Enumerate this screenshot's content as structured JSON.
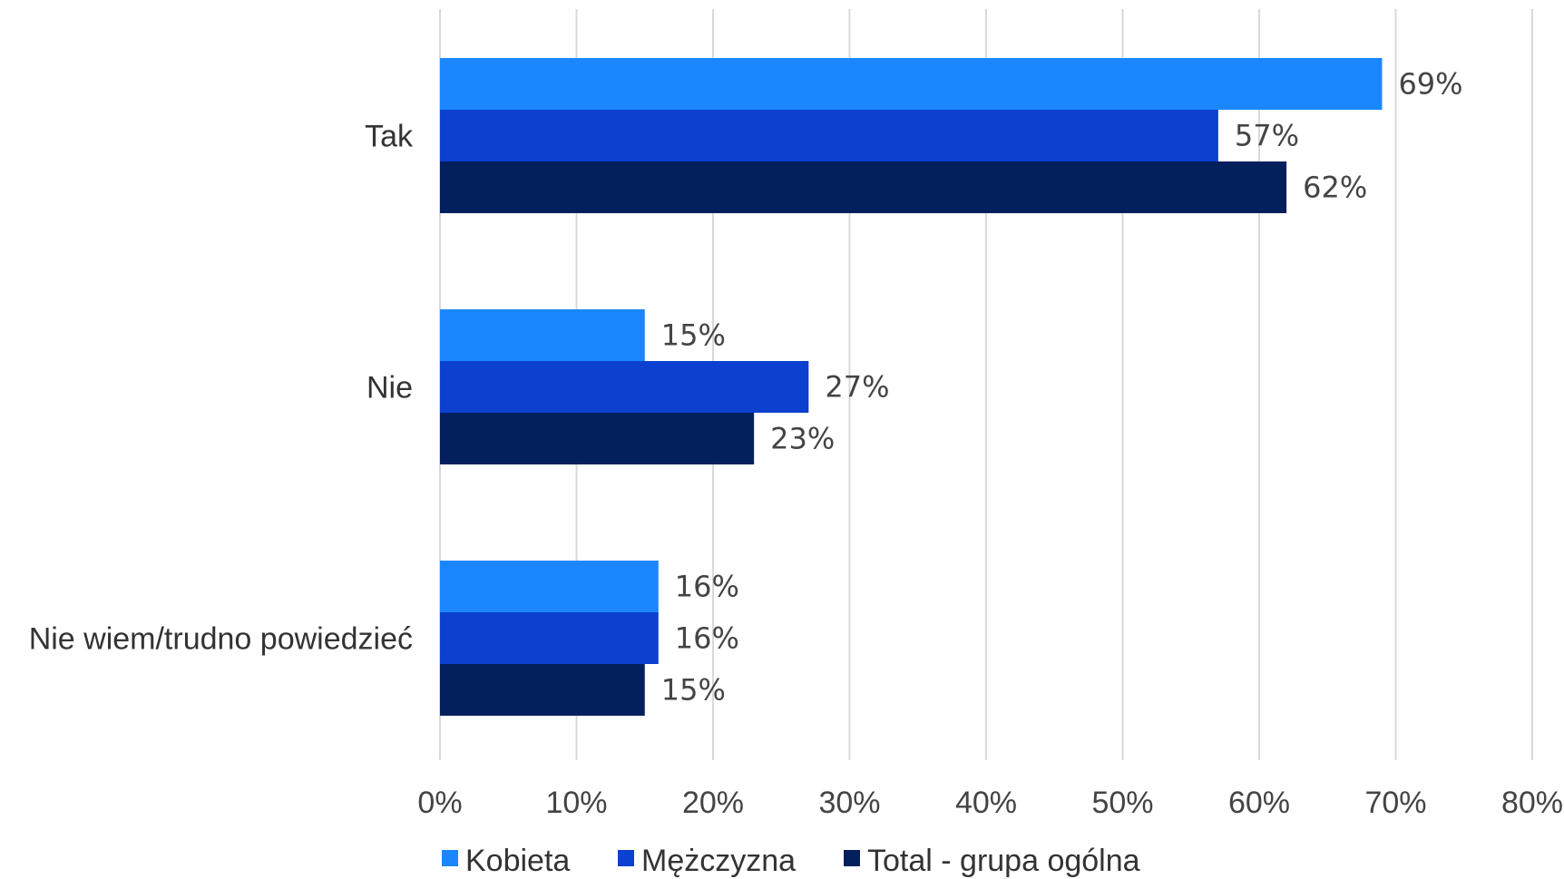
{
  "chart_data": {
    "type": "bar",
    "orientation": "horizontal",
    "categories": [
      "Tak",
      "Nie",
      "Nie wiem/trudno powiedzieć"
    ],
    "series": [
      {
        "name": "Kobieta",
        "color": "#1a87ff",
        "values": [
          69,
          15,
          16
        ],
        "labels": [
          "69%",
          "15%",
          "16%"
        ]
      },
      {
        "name": "Mężczyzna",
        "color": "#0c40cf",
        "values": [
          57,
          27,
          16
        ],
        "labels": [
          "57%",
          "27%",
          "16%"
        ]
      },
      {
        "name": "Total - grupa ogólna",
        "color": "#031f5c",
        "values": [
          62,
          23,
          15
        ],
        "labels": [
          "62%",
          "23%",
          "15%"
        ]
      }
    ],
    "xlim": [
      0,
      80
    ],
    "ticks": [
      0,
      10,
      20,
      30,
      40,
      50,
      60,
      70,
      80
    ],
    "tick_labels": [
      "0%",
      "10%",
      "20%",
      "30%",
      "40%",
      "50%",
      "60%",
      "70%",
      "80%"
    ],
    "grid": true,
    "legend_position": "bottom"
  }
}
